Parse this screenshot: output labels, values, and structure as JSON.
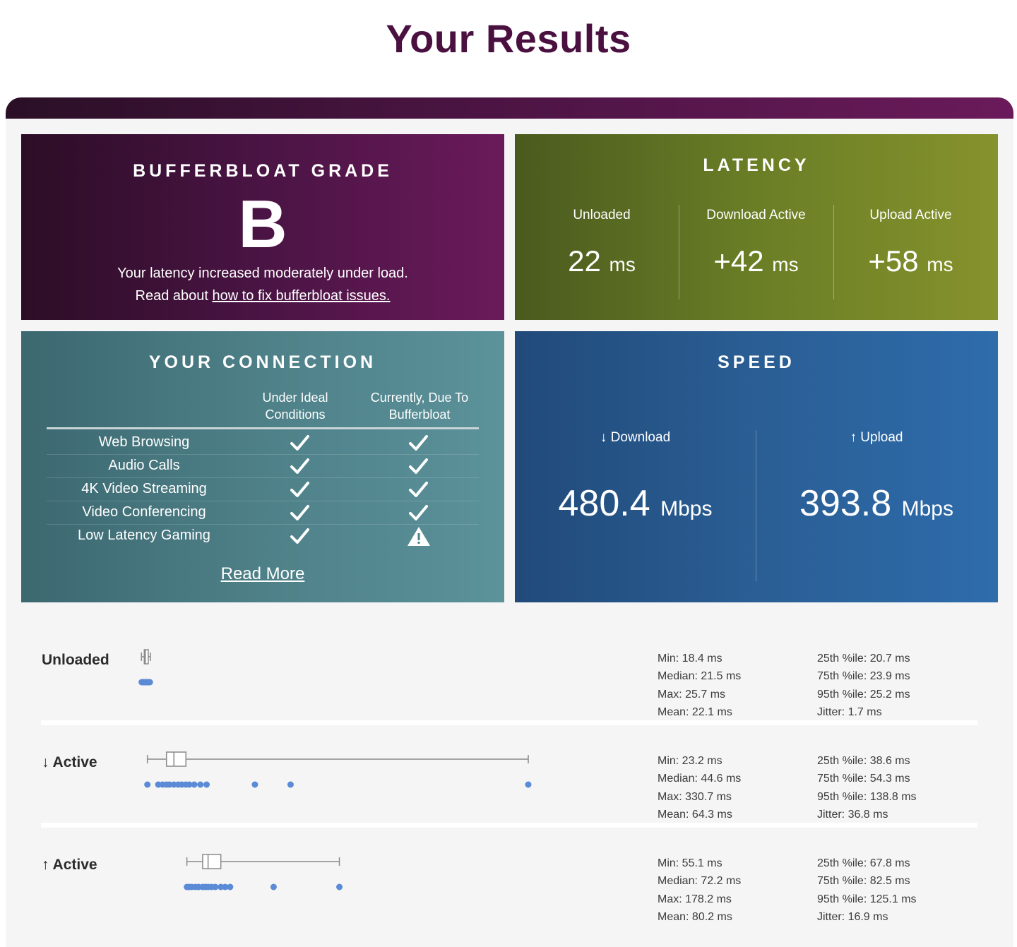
{
  "title": "Your Results",
  "grade": {
    "heading": "BUFFERBLOAT GRADE",
    "letter": "B",
    "description": "Your latency increased moderately under load.",
    "link_prefix": "Read about ",
    "link_text": "how to fix bufferbloat issues.",
    "colors": {
      "start": "#2c0d26",
      "end": "#6a1a5a"
    }
  },
  "latency": {
    "heading": "LATENCY",
    "columns": [
      {
        "label": "Unloaded",
        "value": "22",
        "unit": "ms"
      },
      {
        "label": "Download Active",
        "value": "+42",
        "unit": "ms"
      },
      {
        "label": "Upload Active",
        "value": "+58",
        "unit": "ms"
      }
    ]
  },
  "connection": {
    "heading": "YOUR CONNECTION",
    "col_ideal_1": "Under Ideal",
    "col_ideal_2": "Conditions",
    "col_current_1": "Currently, Due To",
    "col_current_2": "Bufferbloat",
    "rows": [
      {
        "label": "Web Browsing",
        "ideal": "check-icon",
        "current": "check-icon"
      },
      {
        "label": "Audio Calls",
        "ideal": "check-icon",
        "current": "check-icon"
      },
      {
        "label": "4K Video Streaming",
        "ideal": "check-icon",
        "current": "check-icon"
      },
      {
        "label": "Video Conferencing",
        "ideal": "check-icon",
        "current": "check-icon"
      },
      {
        "label": "Low Latency Gaming",
        "ideal": "check-icon",
        "current": "warning-icon"
      }
    ],
    "read_more": "Read More"
  },
  "speed": {
    "heading": "SPEED",
    "download": {
      "label": "↓ Download",
      "value": "480.4",
      "unit": "Mbps"
    },
    "upload": {
      "label": "↑ Upload",
      "value": "393.8",
      "unit": "Mbps"
    }
  },
  "latency_details": [
    {
      "label": "Unloaded",
      "stats_left": [
        "Min: 18.4 ms",
        "Median: 21.5 ms",
        "Max: 25.7 ms",
        "Mean: 22.1 ms"
      ],
      "stats_right": [
        "25th %ile: 20.7 ms",
        "75th %ile: 23.9 ms",
        "95th %ile: 25.2 ms",
        "Jitter: 1.7 ms"
      ],
      "box": {
        "min": 18.4,
        "q1": 20.7,
        "median": 21.5,
        "q3": 23.9,
        "max": 25.7
      },
      "points": [
        18.6,
        19.2,
        19.8,
        20.4,
        20.9,
        21.3,
        21.6,
        22.0,
        22.5,
        23.1,
        23.8,
        24.6,
        25.2
      ]
    },
    {
      "label": "↓ Active",
      "stats_left": [
        "Min: 23.2 ms",
        "Median: 44.6 ms",
        "Max: 330.7 ms",
        "Mean: 64.3 ms"
      ],
      "stats_right": [
        "25th %ile: 38.6 ms",
        "75th %ile: 54.3 ms",
        "95th %ile: 138.8 ms",
        "Jitter: 36.8 ms"
      ],
      "box": {
        "min": 23.2,
        "q1": 38.6,
        "median": 44.6,
        "q3": 54.3,
        "max": 330.7
      },
      "points": [
        23.2,
        32.0,
        35.5,
        38.6,
        41.0,
        44.6,
        48.0,
        51.0,
        54.3,
        57.0,
        61.0,
        66.0,
        71.0,
        110.0,
        138.8,
        330.7
      ]
    },
    {
      "label": "↑ Active",
      "stats_left": [
        "Min: 55.1 ms",
        "Median: 72.2 ms",
        "Max: 178.2 ms",
        "Mean: 80.2 ms"
      ],
      "stats_right": [
        "25th %ile: 67.8 ms",
        "75th %ile: 82.5 ms",
        "95th %ile: 125.1 ms",
        "Jitter: 16.9 ms"
      ],
      "box": {
        "min": 55.1,
        "q1": 67.8,
        "median": 72.2,
        "q3": 82.5,
        "max": 178.2
      },
      "points": [
        55.1,
        57.0,
        59.0,
        62.0,
        64.5,
        67.8,
        70.0,
        72.2,
        75.0,
        78.0,
        82.5,
        86.0,
        90.0,
        125.1,
        178.2
      ]
    }
  ],
  "plot_scale": {
    "min_ms": 0,
    "max_ms": 330.7
  },
  "colors": {
    "title": "#4a1040",
    "box_stroke": "#8a8a8a",
    "point_fill": "#5b8ad6"
  }
}
